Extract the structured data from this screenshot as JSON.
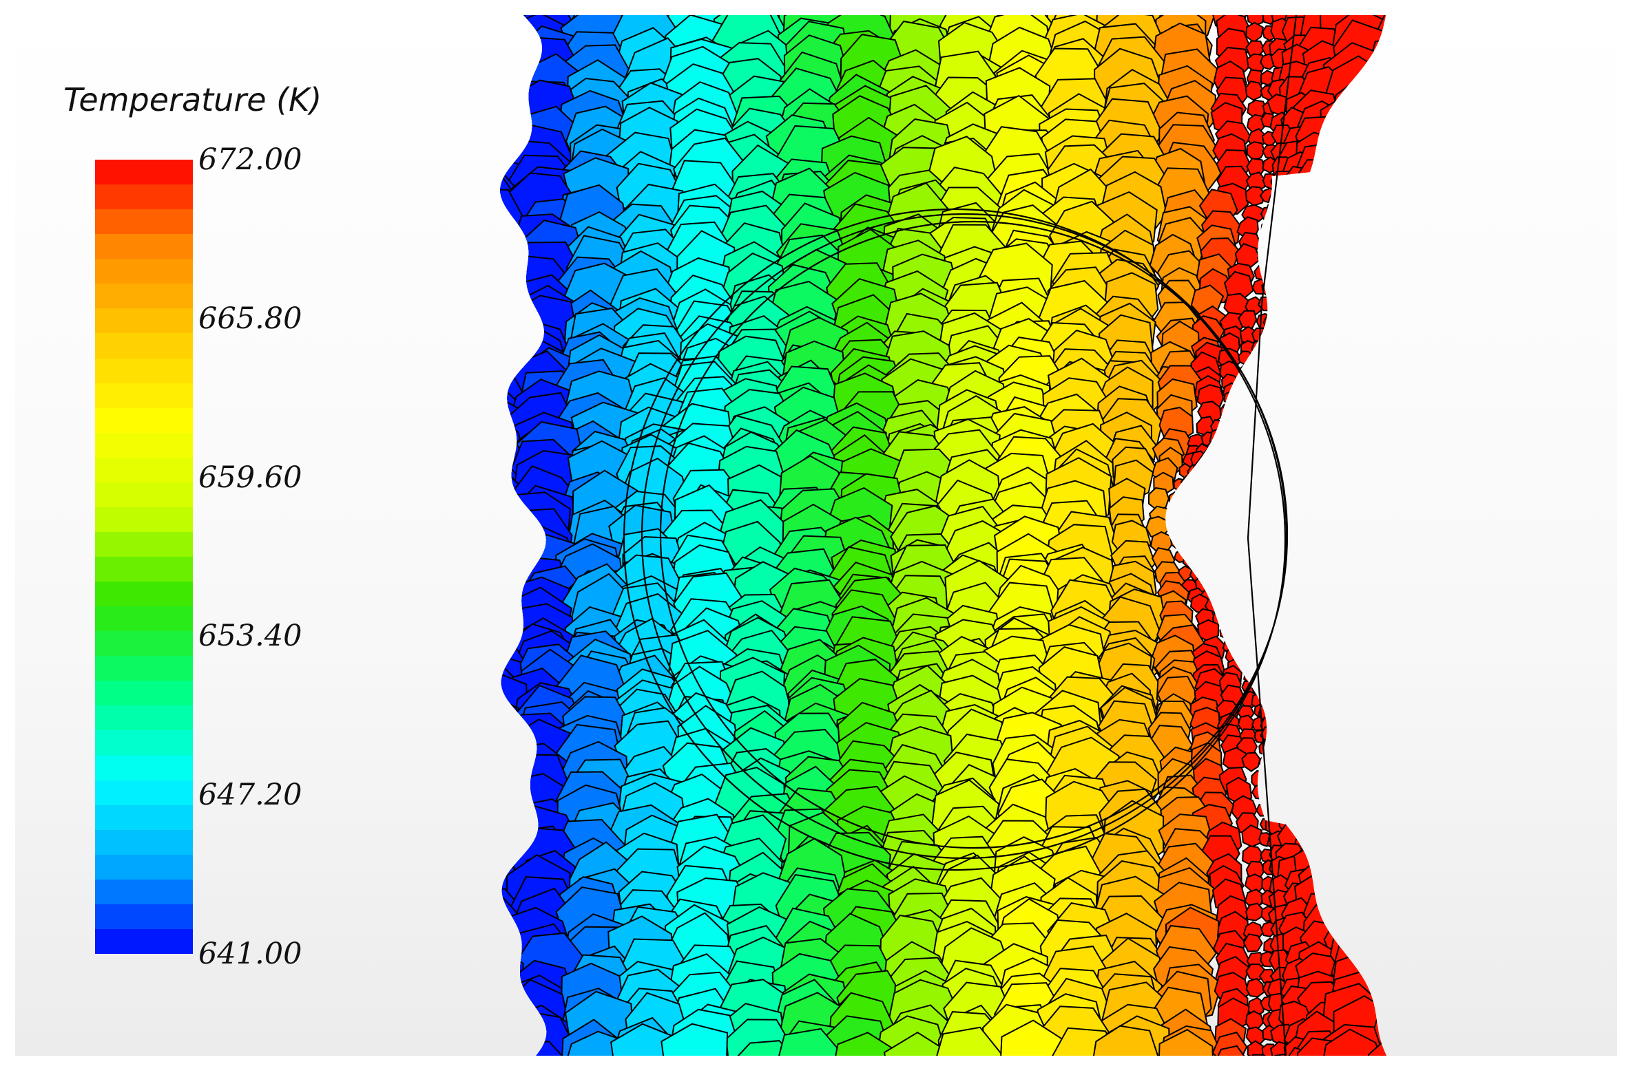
{
  "legend": {
    "title": "Temperature (K)",
    "min": 641.0,
    "max": 672.0,
    "levels": 32,
    "ticks": [
      "672.00",
      "665.80",
      "659.60",
      "653.40",
      "647.20",
      "641.00"
    ],
    "colormap": [
      "#0000ff",
      "#00aaff",
      "#00ffff",
      "#00ff80",
      "#33e600",
      "#ccff00",
      "#ffff00",
      "#ffcc00",
      "#ff8800",
      "#ff0000"
    ]
  },
  "scene": {
    "mesh": "polyhedral cells",
    "mesh_edge_color": "#000000",
    "background": "#f4f4f4"
  }
}
